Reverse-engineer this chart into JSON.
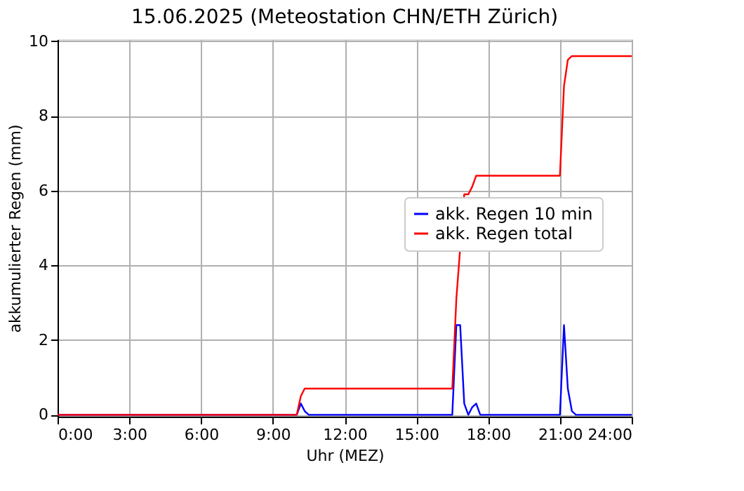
{
  "chart_data": {
    "type": "line",
    "title": "15.06.2025  (Meteostation CHN/ETH Zürich)",
    "xlabel": "Uhr (MEZ)",
    "ylabel": "akkumulierter Regen (mm)",
    "xlim": [
      0,
      24
    ],
    "ylim": [
      -0.05,
      10.05
    ],
    "xticks": [
      {
        "value": 0,
        "label": "0:00"
      },
      {
        "value": 3,
        "label": "3:00"
      },
      {
        "value": 6,
        "label": "6:00"
      },
      {
        "value": 9,
        "label": "9:00"
      },
      {
        "value": 12,
        "label": "12:00"
      },
      {
        "value": 15,
        "label": "15:00"
      },
      {
        "value": 18,
        "label": "18:00"
      },
      {
        "value": 21,
        "label": "21:00"
      },
      {
        "value": 24,
        "label": "24:00"
      }
    ],
    "yticks": [
      0,
      2,
      4,
      6,
      8,
      10
    ],
    "grid": true,
    "legend": "right",
    "marker": "none",
    "line_style": "solid",
    "series": [
      {
        "name": "akk. Regen 10 min",
        "color": "#0000ff",
        "x": [
          0,
          10.0,
          10.17,
          10.33,
          10.5,
          16.5,
          16.67,
          16.83,
          17.0,
          17.17,
          17.33,
          17.5,
          17.67,
          21.0,
          21.17,
          21.33,
          21.5,
          21.67,
          24
        ],
        "values": [
          0,
          0,
          0.3,
          0.1,
          0,
          0,
          2.4,
          2.4,
          0.3,
          0,
          0.2,
          0.3,
          0,
          0,
          2.4,
          0.7,
          0.1,
          0,
          0
        ]
      },
      {
        "name": "akk. Regen total",
        "color": "#ff0000",
        "x": [
          0,
          10.0,
          10.17,
          10.33,
          10.5,
          16.5,
          16.67,
          17.0,
          17.17,
          17.33,
          17.5,
          21.0,
          21.17,
          21.33,
          21.5,
          24
        ],
        "values": [
          0,
          0,
          0.5,
          0.7,
          0.7,
          0.7,
          3.1,
          5.9,
          5.9,
          6.1,
          6.4,
          6.4,
          8.8,
          9.5,
          9.6,
          9.6
        ]
      }
    ]
  }
}
